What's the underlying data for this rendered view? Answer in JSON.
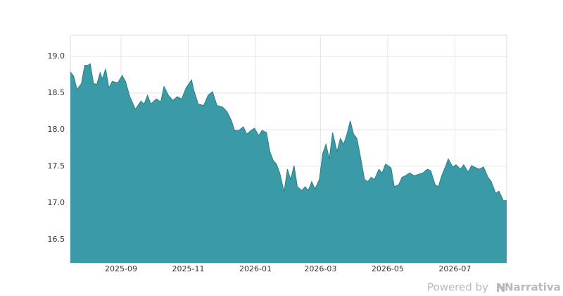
{
  "chart_data": {
    "type": "area",
    "color": "#3a9aa5",
    "line_color": "#2b7f8a",
    "grid": true,
    "xlim": [
      "2025-07-17",
      "2026-08-17"
    ],
    "xticks": [
      "2025-09",
      "2025-11",
      "2026-01",
      "2026-03",
      "2026-05",
      "2026-07"
    ],
    "ylim": [
      16.18,
      19.29
    ],
    "yticks": [
      16.5,
      {
        "value": 17,
        "label": "17.0"
      },
      17.5,
      {
        "value": 18,
        "label": "18.0"
      },
      18.5,
      {
        "value": 19,
        "label": "19.0"
      }
    ],
    "x": [
      "2025-07-17",
      "2025-07-20",
      "2025-07-23",
      "2025-07-27",
      "2025-07-30",
      "2025-08-02",
      "2025-08-04",
      "2025-08-07",
      "2025-08-10",
      "2025-08-13",
      "2025-08-15",
      "2025-08-18",
      "2025-08-21",
      "2025-08-24",
      "2025-08-29",
      "2025-09-02",
      "2025-09-05",
      "2025-09-09",
      "2025-09-14",
      "2025-09-19",
      "2025-09-22",
      "2025-09-25",
      "2025-09-28",
      "2025-10-03",
      "2025-10-07",
      "2025-10-10",
      "2025-10-14",
      "2025-10-18",
      "2025-10-22",
      "2025-10-26",
      "2025-10-30",
      "2025-11-04",
      "2025-11-06",
      "2025-11-10",
      "2025-11-15",
      "2025-11-19",
      "2025-11-23",
      "2025-11-27",
      "2025-12-02",
      "2025-12-06",
      "2025-12-10",
      "2025-12-13",
      "2025-12-17",
      "2025-12-21",
      "2025-12-24",
      "2025-12-28",
      "2025-12-31",
      "2026-01-04",
      "2026-01-07",
      "2026-01-11",
      "2026-01-14",
      "2026-01-17",
      "2026-01-20",
      "2026-01-23",
      "2026-01-27",
      "2026-01-30",
      "2026-02-02",
      "2026-02-05",
      "2026-02-08",
      "2026-02-12",
      "2026-02-15",
      "2026-02-18",
      "2026-02-21",
      "2026-02-24",
      "2026-02-28",
      "2026-03-03",
      "2026-03-06",
      "2026-03-09",
      "2026-03-12",
      "2026-03-16",
      "2026-03-19",
      "2026-03-22",
      "2026-03-25",
      "2026-03-28",
      "2026-03-31",
      "2026-04-03",
      "2026-04-06",
      "2026-04-10",
      "2026-04-13",
      "2026-04-16",
      "2026-04-19",
      "2026-04-23",
      "2026-04-26",
      "2026-04-29",
      "2026-05-04",
      "2026-05-07",
      "2026-05-11",
      "2026-05-14",
      "2026-05-17",
      "2026-05-21",
      "2026-05-25",
      "2026-05-29",
      "2026-06-02",
      "2026-06-06",
      "2026-06-09",
      "2026-06-13",
      "2026-06-16",
      "2026-06-19",
      "2026-06-22",
      "2026-06-25",
      "2026-06-29",
      "2026-07-02",
      "2026-07-06",
      "2026-07-09",
      "2026-07-13",
      "2026-07-16",
      "2026-07-20",
      "2026-07-23",
      "2026-07-27",
      "2026-07-31",
      "2026-08-03",
      "2026-08-07",
      "2026-08-10",
      "2026-08-14",
      "2026-08-17"
    ],
    "values": [
      18.79,
      18.73,
      18.55,
      18.63,
      18.88,
      18.88,
      18.9,
      18.63,
      18.62,
      18.78,
      18.69,
      18.83,
      18.57,
      18.66,
      18.64,
      18.74,
      18.66,
      18.45,
      18.28,
      18.39,
      18.35,
      18.47,
      18.35,
      18.42,
      18.38,
      18.59,
      18.47,
      18.4,
      18.45,
      18.42,
      18.57,
      18.68,
      18.54,
      18.35,
      18.33,
      18.47,
      18.52,
      18.33,
      18.31,
      18.25,
      18.13,
      17.99,
      17.99,
      18.04,
      17.94,
      17.99,
      18.02,
      17.92,
      17.99,
      17.96,
      17.7,
      17.58,
      17.53,
      17.41,
      17.15,
      17.46,
      17.32,
      17.51,
      17.22,
      17.17,
      17.22,
      17.17,
      17.29,
      17.19,
      17.32,
      17.67,
      17.8,
      17.6,
      17.96,
      17.7,
      17.88,
      17.8,
      17.94,
      18.12,
      17.94,
      17.88,
      17.65,
      17.32,
      17.29,
      17.35,
      17.32,
      17.46,
      17.41,
      17.53,
      17.48,
      17.22,
      17.25,
      17.35,
      17.37,
      17.41,
      17.37,
      17.39,
      17.41,
      17.46,
      17.44,
      17.25,
      17.22,
      17.37,
      17.48,
      17.6,
      17.49,
      17.52,
      17.46,
      17.52,
      17.42,
      17.51,
      17.48,
      17.46,
      17.49,
      17.35,
      17.29,
      17.13,
      17.16,
      17.03,
      17.03
    ]
  },
  "footer": {
    "text": "Powered by",
    "brand": "Narrativa"
  }
}
